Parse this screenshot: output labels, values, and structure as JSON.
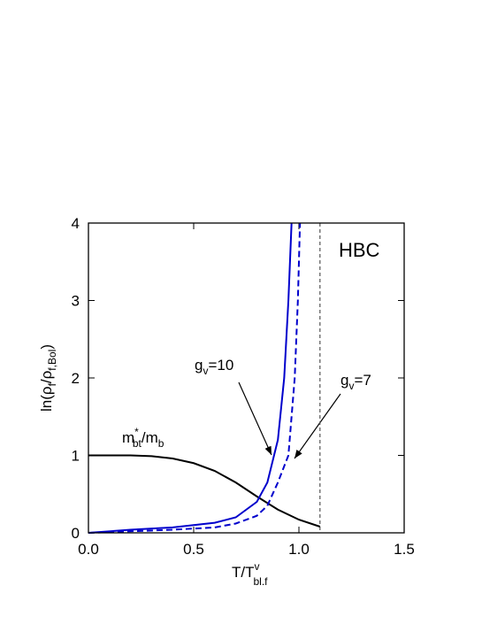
{
  "chart_data": {
    "type": "line",
    "annotation": "HBC",
    "xlabel": {
      "main": "T/T",
      "sup": "v",
      "sub": "bl.f"
    },
    "ylabel": {
      "a": "ln(ρ",
      "b": "f",
      "c": "/ρ",
      "d": "f,Bol",
      "e": ")"
    },
    "xlim": [
      0,
      1.5
    ],
    "ylim": [
      0,
      4
    ],
    "xticks": [
      {
        "value": 0,
        "label": "0.0"
      },
      {
        "value": 0.5,
        "label": "0.5"
      },
      {
        "value": 1,
        "label": "1.0"
      },
      {
        "value": 1.5,
        "label": "1.5"
      }
    ],
    "yticks": [
      0,
      1,
      2,
      3,
      4
    ],
    "vline_x": 1.1,
    "series": [
      {
        "name": {
          "base": "m",
          "sup": "*",
          "sub": "bt",
          "rest": "/m",
          "sub2": "b"
        },
        "color": "#000000",
        "dash": false,
        "x": [
          0,
          0.1,
          0.2,
          0.3,
          0.4,
          0.5,
          0.6,
          0.7,
          0.8,
          0.9,
          1.0,
          1.1
        ],
        "values": [
          1,
          1,
          1,
          0.99,
          0.96,
          0.9,
          0.8,
          0.65,
          0.47,
          0.3,
          0.17,
          0.08
        ]
      },
      {
        "name": {
          "base": "g",
          "sub": "v",
          "rest": "=10"
        },
        "color": "#0000cc",
        "dash": false,
        "x": [
          0,
          0.2,
          0.4,
          0.6,
          0.7,
          0.8,
          0.85,
          0.9,
          0.93,
          0.95,
          0.965
        ],
        "values": [
          0,
          0.04,
          0.07,
          0.13,
          0.2,
          0.4,
          0.65,
          1.2,
          2,
          3,
          4
        ]
      },
      {
        "name": {
          "base": "g",
          "sub": "v",
          "rest": "=7"
        },
        "color": "#0000cc",
        "dash": true,
        "x": [
          0,
          0.2,
          0.4,
          0.6,
          0.7,
          0.8,
          0.85,
          0.9,
          0.95,
          0.98,
          0.995,
          1.005
        ],
        "values": [
          0,
          0.02,
          0.04,
          0.07,
          0.12,
          0.22,
          0.35,
          0.65,
          1.0,
          2.0,
          3,
          4
        ]
      }
    ]
  }
}
